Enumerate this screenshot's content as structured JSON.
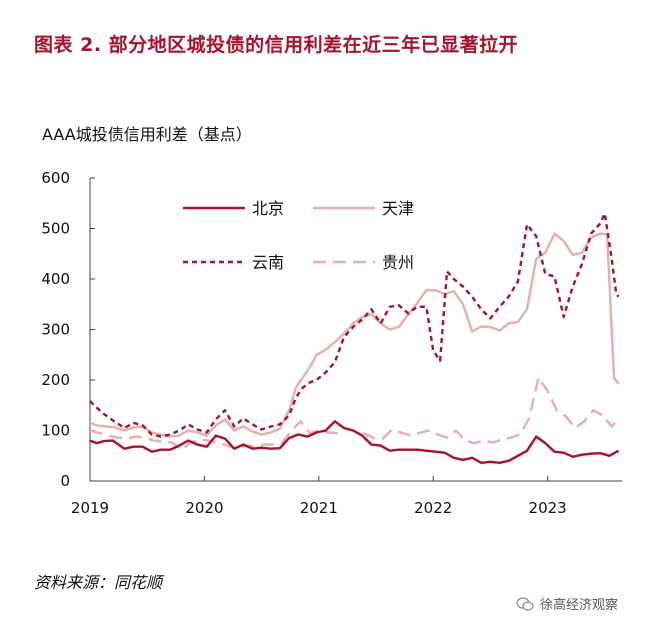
{
  "title": "图表 2. 部分地区城投债的信用利差在近三年已显著拉开",
  "source": "资料来源：同花顺",
  "watermark": "徐高经济观察",
  "chart_data": {
    "type": "line",
    "ylabel": "AAA城投债信用利差（基点）",
    "ylim": [
      0,
      600
    ],
    "yticks": [
      0,
      100,
      200,
      300,
      400,
      500,
      600
    ],
    "xlim": [
      2019.0,
      2023.65
    ],
    "xticks": [
      {
        "value": 2019,
        "label": "2019"
      },
      {
        "value": 2020,
        "label": "2020"
      },
      {
        "value": 2021,
        "label": "2021"
      },
      {
        "value": 2022,
        "label": "2022"
      },
      {
        "value": 2023,
        "label": "2023"
      }
    ],
    "grid": false,
    "legend_position": "top-left",
    "series": [
      {
        "name": "北京",
        "color": "#a8102f",
        "dash": "solid",
        "x": [
          2019.0,
          2019.06,
          2019.12,
          2019.2,
          2019.3,
          2019.38,
          2019.46,
          2019.54,
          2019.62,
          2019.7,
          2019.78,
          2019.86,
          2019.94,
          2020.02,
          2020.1,
          2020.18,
          2020.26,
          2020.34,
          2020.42,
          2020.5,
          2020.58,
          2020.66,
          2020.74,
          2020.82,
          2020.9,
          2020.98,
          2021.06,
          2021.14,
          2021.22,
          2021.3,
          2021.38,
          2021.46,
          2021.54,
          2021.62,
          2021.7,
          2021.78,
          2021.86,
          2021.94,
          2022.02,
          2022.1,
          2022.18,
          2022.26,
          2022.34,
          2022.42,
          2022.5,
          2022.58,
          2022.66,
          2022.74,
          2022.82,
          2022.9,
          2022.98,
          2023.06,
          2023.14,
          2023.22,
          2023.3,
          2023.38,
          2023.46,
          2023.54,
          2023.62
        ],
        "values": [
          80,
          75,
          79,
          80,
          64,
          68,
          68,
          58,
          62,
          62,
          70,
          80,
          72,
          68,
          90,
          84,
          64,
          72,
          64,
          66,
          64,
          65,
          85,
          92,
          88,
          96,
          100,
          118,
          105,
          100,
          90,
          72,
          70,
          60,
          62,
          62,
          62,
          60,
          58,
          56,
          46,
          42,
          46,
          36,
          38,
          36,
          40,
          50,
          60,
          88,
          75,
          58,
          56,
          48,
          52,
          54,
          55,
          50,
          60
        ]
      },
      {
        "name": "天津",
        "color": "#e6aeae",
        "dash": "solid",
        "x": [
          2019.0,
          2019.06,
          2019.14,
          2019.22,
          2019.3,
          2019.38,
          2019.46,
          2019.54,
          2019.62,
          2019.7,
          2019.78,
          2019.86,
          2019.94,
          2020.02,
          2020.1,
          2020.18,
          2020.26,
          2020.34,
          2020.42,
          2020.5,
          2020.58,
          2020.66,
          2020.74,
          2020.8,
          2020.86,
          2020.92,
          2020.98,
          2021.06,
          2021.14,
          2021.22,
          2021.3,
          2021.38,
          2021.46,
          2021.54,
          2021.62,
          2021.7,
          2021.78,
          2021.86,
          2021.94,
          2022.02,
          2022.1,
          2022.18,
          2022.26,
          2022.34,
          2022.42,
          2022.5,
          2022.58,
          2022.66,
          2022.74,
          2022.82,
          2022.9,
          2022.98,
          2023.06,
          2023.14,
          2023.22,
          2023.3,
          2023.38,
          2023.46,
          2023.52,
          2023.58,
          2023.62
        ],
        "values": [
          115,
          110,
          108,
          106,
          100,
          106,
          108,
          96,
          92,
          88,
          90,
          100,
          96,
          90,
          110,
          122,
          100,
          108,
          98,
          92,
          96,
          104,
          140,
          185,
          205,
          225,
          250,
          260,
          275,
          292,
          312,
          325,
          330,
          312,
          300,
          305,
          330,
          352,
          378,
          378,
          370,
          376,
          350,
          296,
          306,
          305,
          298,
          312,
          315,
          340,
          440,
          452,
          490,
          475,
          448,
          452,
          482,
          490,
          488,
          205,
          192
        ]
      },
      {
        "name": "云南",
        "color": "#a8102f",
        "dash": "5,4",
        "x": [
          2019.0,
          2019.06,
          2019.12,
          2019.2,
          2019.3,
          2019.38,
          2019.46,
          2019.54,
          2019.62,
          2019.7,
          2019.78,
          2019.86,
          2019.94,
          2020.02,
          2020.1,
          2020.18,
          2020.26,
          2020.34,
          2020.42,
          2020.5,
          2020.58,
          2020.66,
          2020.74,
          2020.8,
          2020.86,
          2020.92,
          2020.98,
          2021.06,
          2021.14,
          2021.22,
          2021.3,
          2021.38,
          2021.46,
          2021.54,
          2021.62,
          2021.7,
          2021.78,
          2021.86,
          2021.94,
          2022.0,
          2022.06,
          2022.12,
          2022.18,
          2022.26,
          2022.34,
          2022.42,
          2022.5,
          2022.58,
          2022.66,
          2022.74,
          2022.82,
          2022.9,
          2022.98,
          2023.06,
          2023.14,
          2023.22,
          2023.3,
          2023.38,
          2023.46,
          2023.5,
          2023.56,
          2023.6,
          2023.62
        ],
        "values": [
          158,
          145,
          133,
          120,
          105,
          115,
          110,
          92,
          88,
          92,
          100,
          112,
          102,
          96,
          122,
          140,
          108,
          124,
          112,
          102,
          108,
          112,
          130,
          165,
          185,
          195,
          200,
          215,
          235,
          285,
          305,
          320,
          340,
          312,
          345,
          348,
          332,
          345,
          345,
          258,
          238,
          415,
          400,
          385,
          365,
          340,
          322,
          345,
          365,
          395,
          508,
          485,
          410,
          405,
          325,
          385,
          430,
          490,
          510,
          530,
          440,
          370,
          365
        ]
      },
      {
        "name": "贵州",
        "color": "#e6aeae",
        "dash": "13,7",
        "x": [
          2019.0,
          2019.08,
          2019.16,
          2019.24,
          2019.32,
          2019.4,
          2019.48,
          2019.56,
          2019.64,
          2019.72,
          2019.8,
          2019.88,
          2019.96,
          2020.04,
          2020.12,
          2020.2,
          2020.28,
          2020.36,
          2020.44,
          2020.52,
          2020.6,
          2020.68,
          2020.76,
          2020.84,
          2020.92,
          2021.0,
          2021.08,
          2021.16,
          2021.24,
          2021.32,
          2021.4,
          2021.48,
          2021.56,
          2021.64,
          2021.72,
          2021.8,
          2021.88,
          2021.96,
          2022.04,
          2022.12,
          2022.2,
          2022.28,
          2022.36,
          2022.44,
          2022.52,
          2022.6,
          2022.68,
          2022.76,
          2022.84,
          2022.92,
          2023.0,
          2023.08,
          2023.16,
          2023.24,
          2023.32,
          2023.4,
          2023.48,
          2023.56,
          2023.62
        ],
        "values": [
          100,
          95,
          90,
          86,
          84,
          88,
          86,
          80,
          78,
          76,
          62,
          76,
          82,
          80,
          75,
          70,
          65,
          70,
          68,
          72,
          72,
          76,
          100,
          118,
          95,
          100,
          96,
          95,
          104,
          98,
          94,
          85,
          84,
          102,
          96,
          90,
          95,
          100,
          92,
          86,
          100,
          80,
          75,
          80,
          76,
          82,
          86,
          92,
          125,
          205,
          178,
          140,
          128,
          105,
          118,
          140,
          130,
          108,
          125
        ]
      }
    ]
  }
}
